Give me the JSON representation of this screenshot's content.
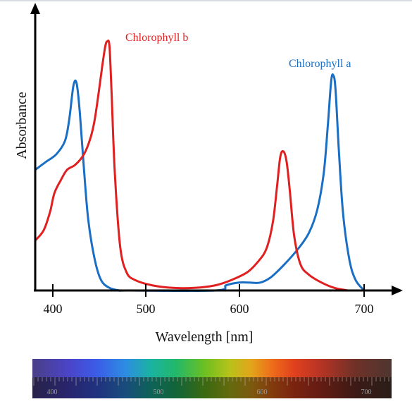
{
  "chart_data": {
    "type": "line",
    "xlabel": "Wavelength [nm]",
    "ylabel": "Absorbance",
    "xlim": [
      390,
      730
    ],
    "x_ticks": [
      400,
      500,
      600,
      700
    ],
    "x_tick_labels": [
      "400",
      "500",
      "600",
      "700"
    ],
    "ylim": [
      0,
      1
    ],
    "grid": false,
    "series": [
      {
        "name": "Chlorophyll a",
        "color": "#1a6fc4",
        "points": [
          [
            390,
            0.46
          ],
          [
            400,
            0.49
          ],
          [
            410,
            0.52
          ],
          [
            418,
            0.57
          ],
          [
            422,
            0.65
          ],
          [
            426,
            0.78
          ],
          [
            429,
            0.79
          ],
          [
            432,
            0.68
          ],
          [
            436,
            0.46
          ],
          [
            440,
            0.27
          ],
          [
            446,
            0.12
          ],
          [
            452,
            0.04
          ],
          [
            460,
            0.01
          ],
          [
            470,
            0.0
          ],
          [
            478,
            0.0
          ],
          [
            560,
            0.0
          ],
          [
            570,
            0.02
          ],
          [
            582,
            0.03
          ],
          [
            592,
            0.03
          ],
          [
            602,
            0.03
          ],
          [
            612,
            0.05
          ],
          [
            625,
            0.1
          ],
          [
            638,
            0.16
          ],
          [
            648,
            0.22
          ],
          [
            656,
            0.31
          ],
          [
            662,
            0.45
          ],
          [
            666,
            0.64
          ],
          [
            669,
            0.8
          ],
          [
            671,
            0.82
          ],
          [
            673,
            0.77
          ],
          [
            676,
            0.55
          ],
          [
            680,
            0.3
          ],
          [
            686,
            0.12
          ],
          [
            692,
            0.04
          ],
          [
            700,
            0.0
          ]
        ]
      },
      {
        "name": "Chlorophyll b",
        "color": "#e02020",
        "points": [
          [
            390,
            0.19
          ],
          [
            398,
            0.23
          ],
          [
            404,
            0.3
          ],
          [
            408,
            0.37
          ],
          [
            414,
            0.42
          ],
          [
            420,
            0.46
          ],
          [
            428,
            0.48
          ],
          [
            436,
            0.52
          ],
          [
            442,
            0.58
          ],
          [
            446,
            0.65
          ],
          [
            450,
            0.76
          ],
          [
            453,
            0.85
          ],
          [
            456,
            0.93
          ],
          [
            458,
            0.95
          ],
          [
            460,
            0.93
          ],
          [
            462,
            0.75
          ],
          [
            465,
            0.45
          ],
          [
            470,
            0.17
          ],
          [
            476,
            0.07
          ],
          [
            484,
            0.04
          ],
          [
            500,
            0.02
          ],
          [
            520,
            0.01
          ],
          [
            540,
            0.01
          ],
          [
            560,
            0.02
          ],
          [
            575,
            0.04
          ],
          [
            590,
            0.07
          ],
          [
            600,
            0.11
          ],
          [
            608,
            0.16
          ],
          [
            614,
            0.26
          ],
          [
            618,
            0.4
          ],
          [
            621,
            0.51
          ],
          [
            624,
            0.53
          ],
          [
            627,
            0.49
          ],
          [
            630,
            0.38
          ],
          [
            634,
            0.21
          ],
          [
            640,
            0.1
          ],
          [
            648,
            0.06
          ],
          [
            660,
            0.03
          ],
          [
            672,
            0.01
          ],
          [
            685,
            0.0
          ]
        ]
      }
    ],
    "annotations": [
      {
        "text": "Chlorophyll b",
        "series": "Chlorophyll b"
      },
      {
        "text": "Chlorophyll a",
        "series": "Chlorophyll a"
      }
    ],
    "spectrum_bar": {
      "tick_labels": [
        "400",
        "500",
        "600",
        "700"
      ]
    }
  }
}
